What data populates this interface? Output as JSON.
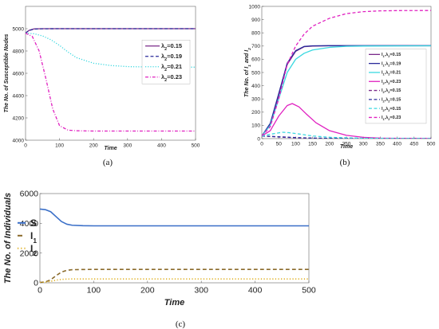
{
  "captions": [
    "(a)",
    "(b)",
    "(c)"
  ],
  "chart_data": [
    {
      "type": "line",
      "ylabel": "The No. of Susceptible Nodes",
      "xlabel": "Time",
      "xlim": [
        0,
        500
      ],
      "ylim": [
        4000,
        5200
      ],
      "xticks": [
        "0",
        "100",
        "200",
        "300",
        "400",
        "500"
      ],
      "yticks": [
        "4000",
        "4200",
        "4400",
        "4600",
        "4800",
        "5000"
      ],
      "legend": "center-right",
      "series": [
        {
          "name": "λ2=0.15",
          "color": "#7a2a8a",
          "dash": "solid",
          "x": [
            0,
            10,
            25,
            50,
            100,
            200,
            300,
            500
          ],
          "values": [
            4960,
            4985,
            4998,
            5000,
            5000,
            5000,
            5000,
            5000
          ]
        },
        {
          "name": "λ2=0.19",
          "color": "#2a2a9a",
          "dash": "dash",
          "x": [
            0,
            10,
            25,
            50,
            100,
            200,
            300,
            500
          ],
          "values": [
            4960,
            4983,
            4996,
            4999,
            5000,
            5000,
            5000,
            5000
          ]
        },
        {
          "name": "λ2=0.21",
          "color": "#3ad8e0",
          "dash": "dot",
          "x": [
            0,
            25,
            50,
            75,
            100,
            125,
            150,
            200,
            250,
            300,
            400,
            500
          ],
          "values": [
            4960,
            4955,
            4935,
            4900,
            4850,
            4790,
            4740,
            4690,
            4670,
            4660,
            4655,
            4655
          ]
        },
        {
          "name": "λ2=0.23",
          "color": "#e020c0",
          "dash": "dashdot",
          "x": [
            0,
            20,
            40,
            60,
            80,
            100,
            125,
            150,
            200,
            300,
            400,
            500
          ],
          "values": [
            4960,
            4930,
            4800,
            4550,
            4280,
            4130,
            4090,
            4085,
            4082,
            4082,
            4082,
            4082
          ]
        }
      ]
    },
    {
      "type": "line",
      "ylabel": "The No. of I1 and I2",
      "ylabel_base": "The No. of I",
      "ylabel_and": " and I",
      "ylabel_sub1": "1",
      "ylabel_sub2": "2",
      "xlabel": "Time",
      "xlim": [
        0,
        500
      ],
      "ylim": [
        0,
        1000
      ],
      "xticks": [
        "0",
        "50",
        "100",
        "150",
        "200",
        "250",
        "300",
        "350",
        "400",
        "450",
        "500"
      ],
      "yticks": [
        "0",
        "100",
        "200",
        "300",
        "400",
        "500",
        "600",
        "700",
        "800",
        "900",
        "1000"
      ],
      "legend": "center-right",
      "series": [
        {
          "name": "I1,λ2=0.15",
          "label_base": "I",
          "label_sub": "1",
          "label_rest": ",λ",
          "label_sub2": "2",
          "label_val": "=0.15",
          "color": "#7a2a8a",
          "dash": "solid",
          "x": [
            0,
            25,
            50,
            75,
            100,
            125,
            150,
            200,
            300,
            500
          ],
          "values": [
            20,
            110,
            330,
            560,
            660,
            695,
            700,
            702,
            702,
            702
          ]
        },
        {
          "name": "I1,λ2=0.19",
          "label_base": "I",
          "label_sub": "1",
          "label_rest": ",λ",
          "label_sub2": "2",
          "label_val": "=0.19",
          "color": "#2a2a9a",
          "dash": "solid",
          "x": [
            0,
            25,
            50,
            75,
            100,
            125,
            150,
            200,
            300,
            500
          ],
          "values": [
            20,
            115,
            340,
            570,
            665,
            697,
            702,
            703,
            703,
            703
          ]
        },
        {
          "name": "I1,λ2=0.21",
          "label_base": "I",
          "label_sub": "1",
          "label_rest": ",λ",
          "label_sub2": "2",
          "label_val": "=0.21",
          "color": "#3ad8e0",
          "dash": "solid",
          "x": [
            0,
            25,
            50,
            75,
            100,
            125,
            150,
            200,
            250,
            300,
            500
          ],
          "values": [
            20,
            100,
            300,
            500,
            600,
            645,
            670,
            690,
            698,
            700,
            702
          ]
        },
        {
          "name": "I2,λ2=0.23",
          "label_base": "I",
          "label_sub": "2",
          "label_rest": ",λ",
          "label_sub2": "2",
          "label_val": "=0.23",
          "color": "#e020c0",
          "dash": "solid",
          "x": [
            0,
            25,
            50,
            75,
            90,
            110,
            130,
            160,
            200,
            250,
            300,
            350,
            400,
            500
          ],
          "values": [
            20,
            60,
            170,
            250,
            265,
            240,
            190,
            120,
            60,
            25,
            10,
            4,
            2,
            1
          ]
        },
        {
          "name": "I2,λ2=0.15",
          "label_base": "I",
          "label_sub": "2",
          "label_rest": ",λ",
          "label_sub2": "2",
          "label_val": "=0.15",
          "color": "#7a2a8a",
          "dash": "dash",
          "x": [
            0,
            50,
            100,
            150,
            200,
            300,
            500
          ],
          "values": [
            20,
            12,
            6,
            3,
            1,
            0,
            0
          ]
        },
        {
          "name": "I2,λ2=0.15",
          "label_base": "I",
          "label_sub": "2",
          "label_rest": ",λ",
          "label_sub2": "2",
          "label_val": "=0.15",
          "color": "#2a2a9a",
          "dash": "dash",
          "x": [
            0,
            50,
            100,
            150,
            200,
            300,
            500
          ],
          "values": [
            20,
            14,
            8,
            4,
            2,
            1,
            0
          ]
        },
        {
          "name": "I2,λ2=0.15",
          "label_base": "I",
          "label_sub": "2",
          "label_rest": ",λ",
          "label_sub2": "2",
          "label_val": "=0.15",
          "color": "#3ad8e0",
          "dash": "dash",
          "x": [
            0,
            30,
            60,
            80,
            110,
            150,
            200,
            300,
            400,
            500
          ],
          "values": [
            20,
            35,
            48,
            45,
            35,
            20,
            10,
            3,
            1,
            0
          ]
        },
        {
          "name": "I1,λ2=0.23",
          "label_base": "I",
          "label_sub": "1",
          "label_rest": ",λ",
          "label_sub2": "2",
          "label_val": "=0.23",
          "color": "#e020c0",
          "dash": "dash",
          "x": [
            0,
            25,
            50,
            75,
            100,
            125,
            150,
            200,
            250,
            300,
            350,
            400,
            500
          ],
          "values": [
            20,
            90,
            300,
            560,
            700,
            790,
            850,
            910,
            945,
            960,
            966,
            968,
            969
          ]
        }
      ]
    },
    {
      "type": "line",
      "ylabel": "The No. of Individuals",
      "xlabel": "Time",
      "xlim": [
        0,
        500
      ],
      "ylim": [
        0,
        6000
      ],
      "xticks": [
        "0",
        "100",
        "200",
        "300",
        "400",
        "500"
      ],
      "yticks": [
        "0",
        "2000",
        "4000",
        "6000"
      ],
      "legend": "left",
      "series": [
        {
          "name": "S",
          "label_base": "S",
          "label_sub": "",
          "color": "#3a6fc8",
          "dash": "solid",
          "x": [
            0,
            10,
            20,
            30,
            40,
            50,
            60,
            80,
            100,
            200,
            300,
            500
          ],
          "values": [
            4960,
            4920,
            4780,
            4450,
            4120,
            3940,
            3870,
            3840,
            3830,
            3830,
            3830,
            3830
          ]
        },
        {
          "name": "I1",
          "label_base": "I",
          "label_sub": "1",
          "color": "#8a6a2a",
          "dash": "dash",
          "x": [
            0,
            10,
            20,
            30,
            40,
            50,
            60,
            80,
            100,
            200,
            300,
            500
          ],
          "values": [
            20,
            60,
            200,
            480,
            720,
            840,
            880,
            895,
            900,
            900,
            900,
            900
          ]
        },
        {
          "name": "I2",
          "label_base": "I",
          "label_sub": "2",
          "color": "#e0b020",
          "dash": "dot",
          "x": [
            0,
            10,
            20,
            30,
            40,
            50,
            60,
            80,
            100,
            200,
            300,
            500
          ],
          "values": [
            20,
            40,
            100,
            180,
            230,
            250,
            258,
            260,
            260,
            260,
            260,
            260
          ]
        }
      ]
    }
  ]
}
